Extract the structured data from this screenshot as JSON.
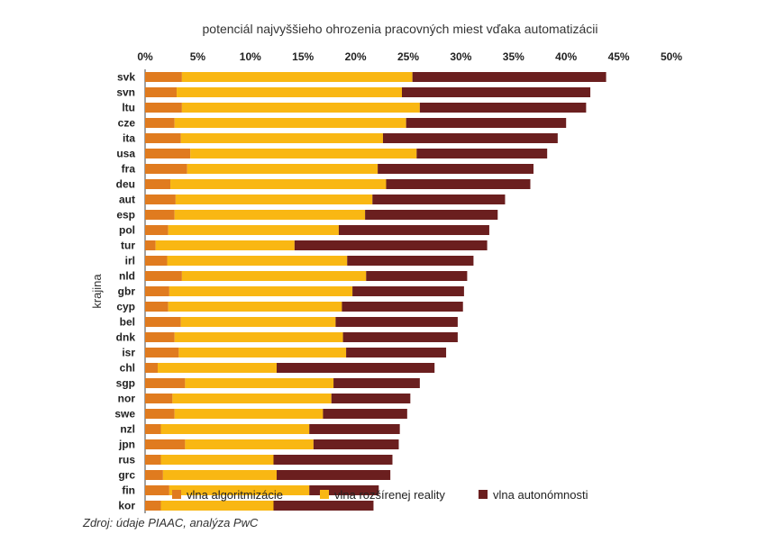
{
  "chart_data": {
    "type": "bar",
    "orientation": "horizontal",
    "stacked": true,
    "title": "potenciál najvyššieho ohrozenia pracovných miest vďaka automatizácii",
    "xlabel": "",
    "ylabel": "krajina",
    "xlim": [
      0,
      50
    ],
    "x_ticks": [
      "0%",
      "5%",
      "10%",
      "15%",
      "20%",
      "25%",
      "30%",
      "35%",
      "40%",
      "45%",
      "50%"
    ],
    "x_axis_position": "top",
    "grid": false,
    "legend_position": "bottom",
    "categories": [
      "svk",
      "svn",
      "ltu",
      "cze",
      "ita",
      "usa",
      "fra",
      "deu",
      "aut",
      "esp",
      "pol",
      "tur",
      "irl",
      "nld",
      "gbr",
      "cyp",
      "bel",
      "dnk",
      "isr",
      "chl",
      "sgp",
      "nor",
      "swe",
      "nzl",
      "jpn",
      "rus",
      "grc",
      "fin",
      "kor"
    ],
    "series": [
      {
        "name": "vlna algoritmizácie",
        "color": "#e07b1f",
        "values": [
          3.5,
          3.0,
          3.5,
          2.8,
          3.4,
          4.3,
          4.0,
          2.4,
          2.9,
          2.8,
          2.2,
          1.0,
          2.1,
          3.5,
          2.3,
          2.2,
          3.4,
          2.8,
          3.2,
          1.2,
          3.8,
          2.6,
          2.8,
          1.5,
          3.8,
          1.5,
          1.7,
          2.3,
          1.5
        ]
      },
      {
        "name": "vlna rozšírenej reality",
        "color": "#f9b713",
        "values": [
          21.9,
          21.4,
          22.6,
          22.0,
          19.2,
          21.5,
          18.1,
          20.5,
          18.7,
          18.1,
          16.2,
          13.2,
          17.1,
          17.5,
          17.4,
          16.5,
          14.7,
          16.0,
          15.9,
          11.3,
          14.1,
          15.1,
          14.1,
          14.1,
          12.2,
          10.7,
          10.8,
          13.3,
          10.7
        ]
      },
      {
        "name": "vlna autonómnosti",
        "color": "#6b1f1f",
        "values": [
          18.4,
          17.9,
          15.8,
          15.2,
          16.6,
          12.4,
          14.8,
          13.7,
          12.6,
          12.6,
          14.3,
          18.3,
          12.0,
          9.6,
          10.6,
          11.5,
          11.6,
          10.9,
          9.5,
          15.0,
          8.2,
          7.5,
          8.0,
          8.6,
          8.1,
          11.3,
          10.8,
          6.6,
          9.5
        ]
      }
    ]
  },
  "source_text": "Zdroj: údaje PIAAC, analýza PwC"
}
